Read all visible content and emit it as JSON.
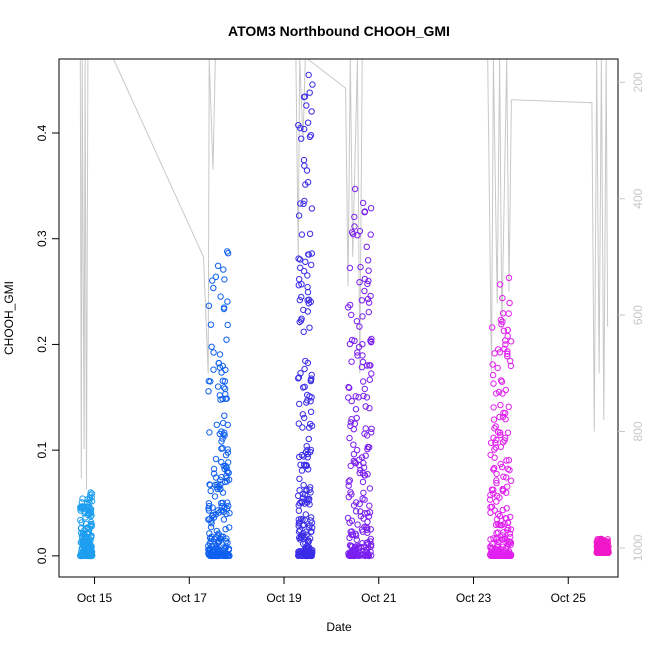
{
  "chart_data": {
    "type": "scatter",
    "title": "ATOM3 Northbound CHOOH_GMI",
    "xlabel": "Date",
    "ylabel": "CHOOH_GMI",
    "x_ticks": [
      "Oct 15",
      "Oct 17",
      "Oct 19",
      "Oct 21",
      "Oct 23",
      "Oct 25"
    ],
    "x_tick_days": [
      15,
      17,
      19,
      21,
      23,
      25
    ],
    "xlim_days": [
      14.25,
      26.05
    ],
    "ylim": [
      -0.02,
      0.47
    ],
    "y_ticks": [
      "0.0",
      "0.1",
      "0.2",
      "0.3",
      "0.4"
    ],
    "y_tick_values": [
      0.0,
      0.1,
      0.2,
      0.3,
      0.4
    ],
    "right_axis": {
      "label": "",
      "ticks": [
        "200",
        "400",
        "600",
        "800",
        "1000"
      ],
      "tick_values": [
        200,
        400,
        600,
        800,
        1000
      ],
      "lim": [
        1050,
        160
      ],
      "color": "#c8c8c8"
    },
    "grid": false,
    "series": [
      {
        "color": "#1e9ef0",
        "range": [
          14.7,
          14.95
        ],
        "ymin": 0.0,
        "ymax": 0.06,
        "peak": [
          14.92,
          0.06
        ]
      },
      {
        "color": "#1060f0",
        "range": [
          17.4,
          17.85
        ],
        "ymin": 0.0,
        "ymax": 0.288,
        "peak": [
          17.8,
          0.288
        ]
      },
      {
        "color": "#3a2ce8",
        "range": [
          19.3,
          19.6
        ],
        "ymin": 0.0,
        "ymax": 0.455,
        "peak": [
          19.52,
          0.455
        ]
      },
      {
        "color": "#7b20f0",
        "range": [
          20.35,
          20.85
        ],
        "ymin": 0.0,
        "ymax": 0.347,
        "peak": [
          20.5,
          0.347
        ]
      },
      {
        "color": "#e020f0",
        "range": [
          23.35,
          23.8
        ],
        "ymin": 0.0,
        "ymax": 0.263,
        "peak": [
          23.75,
          0.263
        ]
      },
      {
        "color": "#f018c8",
        "range": [
          25.6,
          25.85
        ],
        "ymin": 0.003,
        "ymax": 0.016,
        "peak": [
          25.7,
          0.016
        ]
      }
    ],
    "pressure_trace": {
      "color": "#c8c8c8",
      "segments": [
        [
          [
            14.7,
            160
          ],
          [
            14.72,
            880
          ],
          [
            14.74,
            160
          ],
          [
            14.78,
            830
          ],
          [
            14.8,
            160
          ],
          [
            14.83,
            900
          ],
          [
            14.86,
            160
          ],
          [
            14.9,
            160
          ]
        ],
        [
          [
            14.9,
            160
          ],
          [
            15.4,
            160
          ],
          [
            17.3,
            500
          ],
          [
            17.4,
            700
          ],
          [
            17.42,
            160
          ],
          [
            17.5,
            350
          ],
          [
            17.55,
            160
          ],
          [
            17.6,
            160
          ]
        ],
        [
          [
            19.25,
            160
          ],
          [
            19.3,
            500
          ],
          [
            19.33,
            160
          ],
          [
            19.4,
            300
          ],
          [
            19.45,
            160
          ],
          [
            19.5,
            160
          ]
        ],
        [
          [
            19.5,
            160
          ],
          [
            20.3,
            210
          ],
          [
            20.35,
            550
          ],
          [
            20.4,
            160
          ],
          [
            20.45,
            500
          ],
          [
            20.55,
            160
          ],
          [
            20.6,
            700
          ],
          [
            20.65,
            160
          ],
          [
            20.7,
            160
          ]
        ],
        [
          [
            23.3,
            160
          ],
          [
            23.38,
            700
          ],
          [
            23.42,
            160
          ],
          [
            23.5,
            580
          ],
          [
            23.55,
            160
          ],
          [
            23.6,
            620
          ],
          [
            23.7,
            160
          ],
          [
            23.75,
            560
          ],
          [
            23.8,
            230
          ]
        ],
        [
          [
            23.8,
            230
          ],
          [
            25.5,
            235
          ],
          [
            25.55,
            800
          ],
          [
            25.6,
            160
          ],
          [
            25.65,
            700
          ],
          [
            25.7,
            160
          ],
          [
            25.75,
            780
          ],
          [
            25.8,
            160
          ],
          [
            25.83,
            620
          ]
        ]
      ]
    }
  }
}
